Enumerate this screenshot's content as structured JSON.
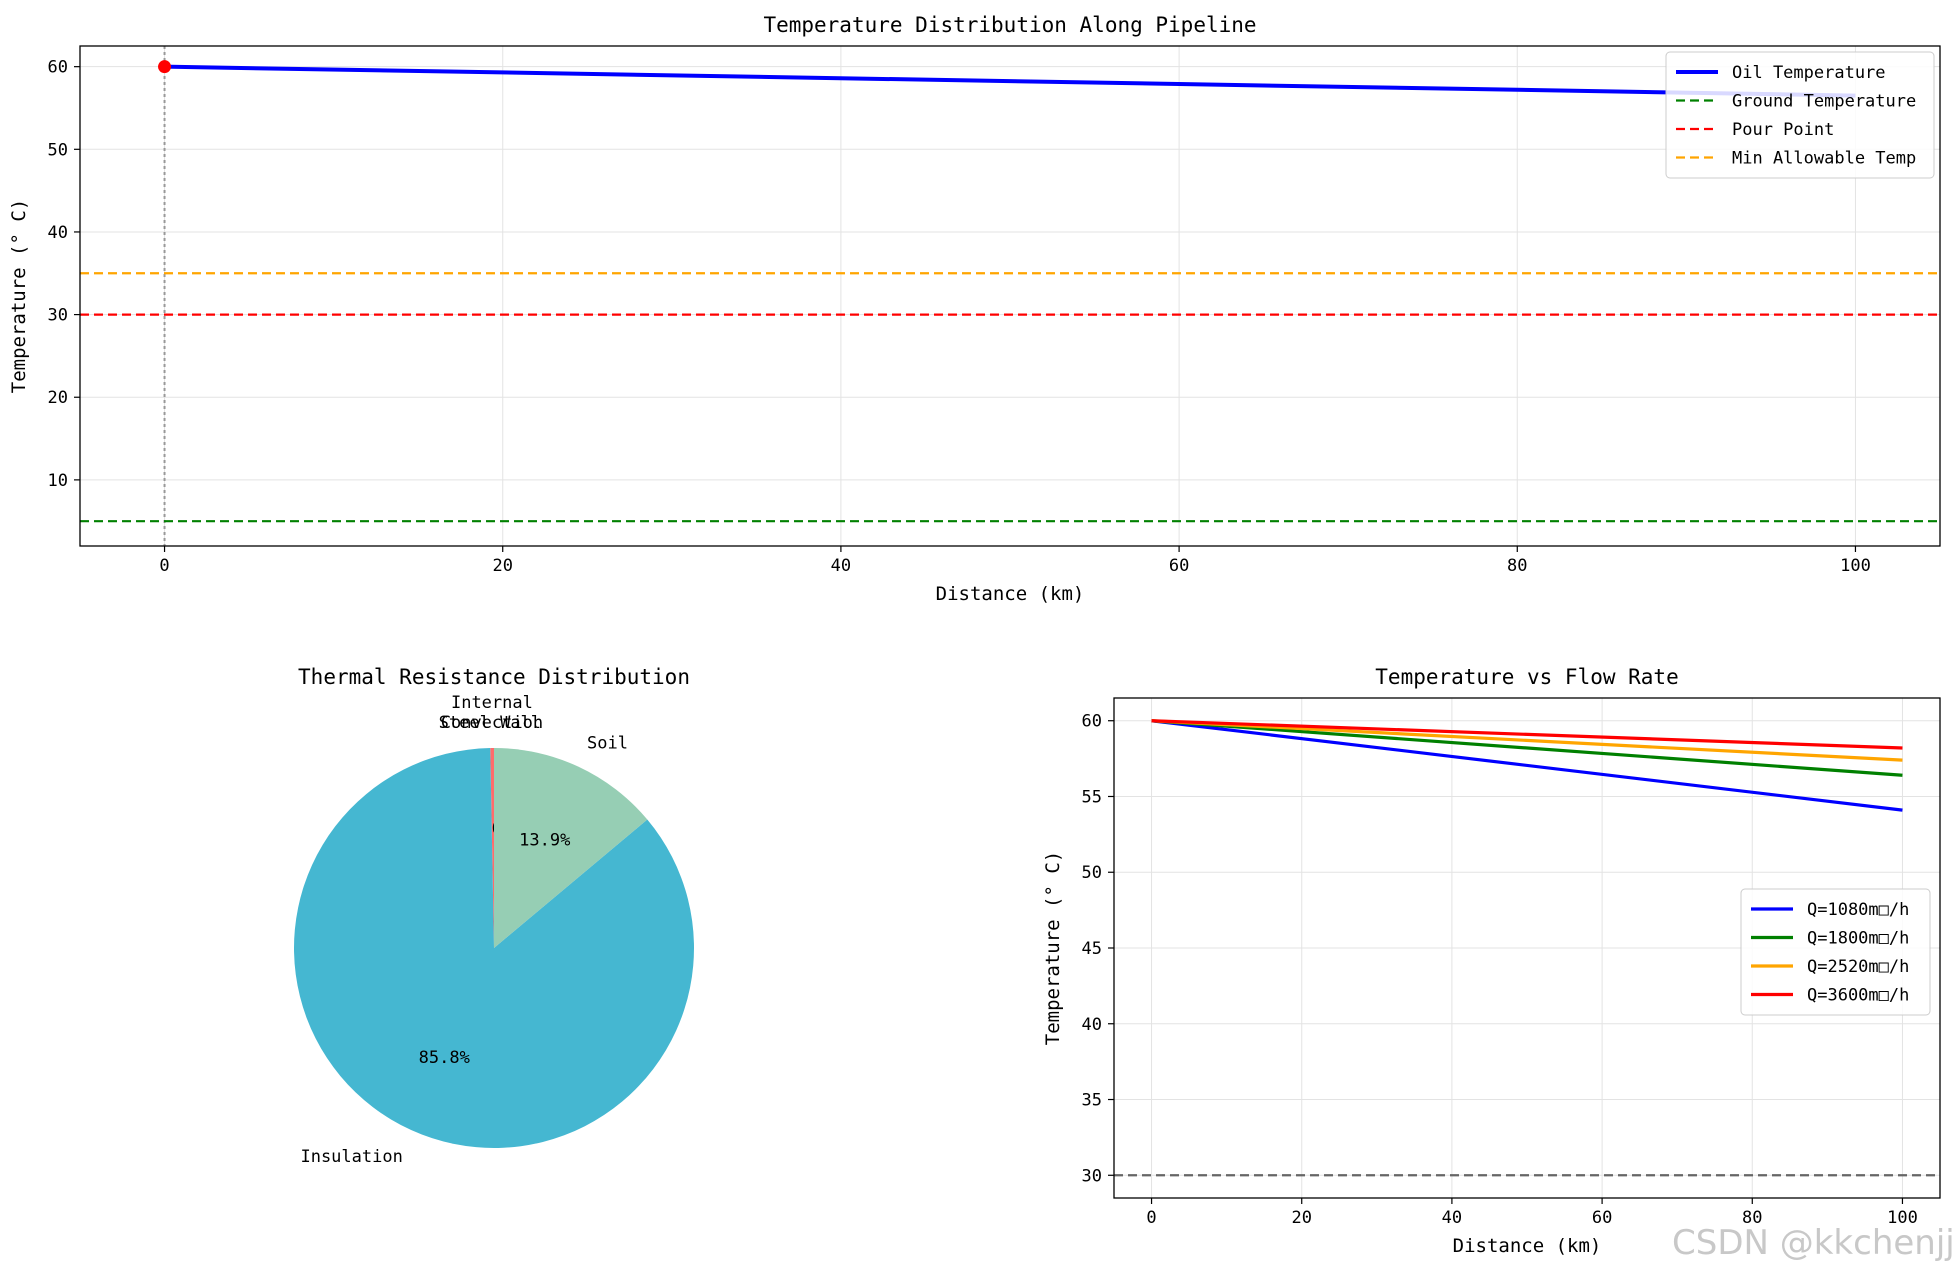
{
  "chart_data": [
    {
      "type": "line",
      "title": "Temperature Distribution Along Pipeline",
      "xlabel": "Distance (km)",
      "ylabel": "Temperature (° C)",
      "xlim": [
        -5,
        105
      ],
      "ylim": [
        2,
        62.5
      ],
      "xticks": [
        0,
        20,
        40,
        60,
        80,
        100
      ],
      "yticks": [
        10,
        20,
        30,
        40,
        50,
        60
      ],
      "grid": true,
      "legend_position": "top-right",
      "series": [
        {
          "name": "Oil Temperature",
          "x": [
            0,
            100
          ],
          "y": [
            60,
            56.5
          ],
          "color": "#0000ff",
          "style": "solid"
        }
      ],
      "hlines": [
        {
          "name": "Ground Temperature",
          "y": 5,
          "color": "#008000",
          "style": "dashed"
        },
        {
          "name": "Pour Point",
          "y": 30,
          "color": "#ff0000",
          "style": "dashed"
        },
        {
          "name": "Min Allowable Temp",
          "y": 35,
          "color": "#ffa500",
          "style": "dashed"
        }
      ],
      "vline": {
        "x": 0,
        "color": "#999999",
        "style": "dotted"
      },
      "marker": {
        "x": 0,
        "y": 60,
        "color": "#ff0000"
      }
    },
    {
      "type": "pie",
      "title": "Thermal Resistance Distribution",
      "slices": [
        {
          "label": "Internal Convection",
          "label_lines": [
            "Internal",
            "Convection"
          ],
          "value": 0.3,
          "pct_label": "0.3%",
          "color": "#ff6b6b"
        },
        {
          "label": "Steel Wall",
          "label_lines": [
            "Steel Wall"
          ],
          "value": 0.0,
          "pct_label": "0.0%",
          "color": "#4ecdc4"
        },
        {
          "label": "Insulation",
          "label_lines": [
            "Insulation"
          ],
          "value": 85.8,
          "pct_label": "85.8%",
          "color": "#45b7d1"
        },
        {
          "label": "Soil",
          "label_lines": [
            "Soil"
          ],
          "value": 13.9,
          "pct_label": "13.9%",
          "color": "#96ceb4"
        }
      ]
    },
    {
      "type": "line",
      "title": "Temperature vs Flow Rate",
      "xlabel": "Distance (km)",
      "ylabel": "Temperature (° C)",
      "xlim": [
        -5,
        105
      ],
      "ylim": [
        28.5,
        61.5
      ],
      "xticks": [
        0,
        20,
        40,
        60,
        80,
        100
      ],
      "yticks": [
        30,
        35,
        40,
        45,
        50,
        55,
        60
      ],
      "grid": true,
      "legend_position": "center-right",
      "series": [
        {
          "name": "Q=1080m□/h",
          "x": [
            0,
            100
          ],
          "y": [
            60,
            54.1
          ],
          "color": "#0000ff"
        },
        {
          "name": "Q=1800m□/h",
          "x": [
            0,
            100
          ],
          "y": [
            60,
            56.4
          ],
          "color": "#008000"
        },
        {
          "name": "Q=2520m□/h",
          "x": [
            0,
            100
          ],
          "y": [
            60,
            57.4
          ],
          "color": "#ffa500"
        },
        {
          "name": "Q=3600m□/h",
          "x": [
            0,
            100
          ],
          "y": [
            60,
            58.2
          ],
          "color": "#ff0000"
        }
      ],
      "hlines": [
        {
          "y": 30,
          "color": "#666666",
          "style": "dashed"
        }
      ]
    }
  ],
  "watermark": "CSDN @kkchenjj"
}
